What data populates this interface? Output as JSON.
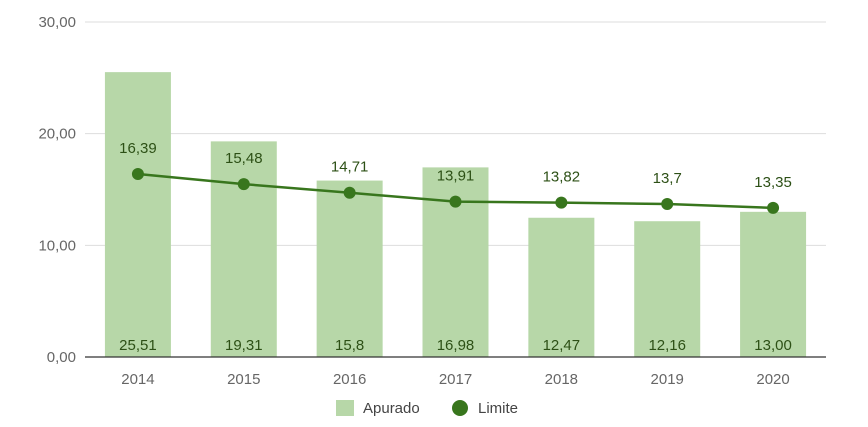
{
  "chart_data": {
    "type": "bar",
    "categories": [
      "2014",
      "2015",
      "2016",
      "2017",
      "2018",
      "2019",
      "2020"
    ],
    "series": [
      {
        "name": "Apurado",
        "kind": "bar",
        "values": [
          25.51,
          19.31,
          15.8,
          16.98,
          12.47,
          12.16,
          13.0
        ],
        "labels": [
          "25,51",
          "19,31",
          "15,8",
          "16,98",
          "12,47",
          "12,16",
          "13,00"
        ],
        "color": "#b7d7a8"
      },
      {
        "name": "Limite",
        "kind": "line",
        "values": [
          16.39,
          15.48,
          14.71,
          13.91,
          13.82,
          13.7,
          13.35
        ],
        "labels": [
          "16,39",
          "15,48",
          "14,71",
          "13,91",
          "13,82",
          "13,7",
          "13,35"
        ],
        "color": "#38761d"
      }
    ],
    "ylim": [
      0,
      30
    ],
    "yticks": [
      "0,00",
      "10,00",
      "20,00",
      "30,00"
    ],
    "grid": true,
    "legend_position": "bottom"
  }
}
